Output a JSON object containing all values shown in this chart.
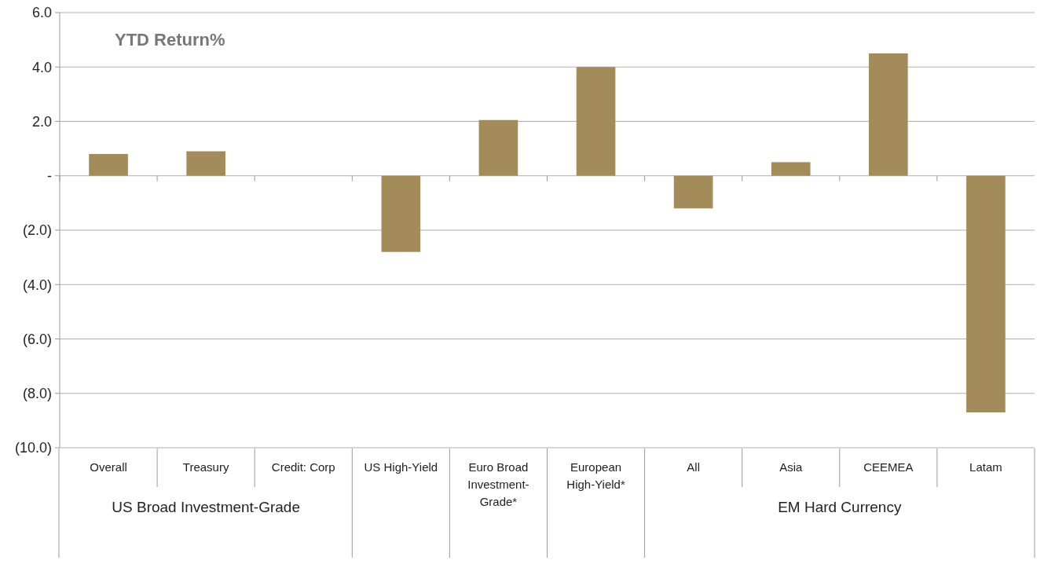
{
  "chart_data": {
    "type": "bar",
    "title": "YTD Return%",
    "categories": [
      "Overall",
      "Treasury",
      "Credit: Corp",
      "US High-Yield",
      "Euro Broad Investment-Grade*",
      "European High-Yield*",
      "All",
      "Asia",
      "CEEMEA",
      "Latam"
    ],
    "values": [
      0.8,
      0.9,
      0,
      -2.8,
      2.05,
      4.0,
      -1.2,
      0.5,
      4.5,
      -8.7
    ],
    "color": "#a38c5a",
    "ylim": [
      -10,
      6
    ],
    "yticks": [
      {
        "value": 6,
        "label": "6.0"
      },
      {
        "value": 4,
        "label": "4.0"
      },
      {
        "value": 2,
        "label": "2.0"
      },
      {
        "value": 0,
        "label": "-"
      },
      {
        "value": -2,
        "label": "(2.0)"
      },
      {
        "value": -4,
        "label": "(4.0)"
      },
      {
        "value": -6,
        "label": "(6.0)"
      },
      {
        "value": -8,
        "label": "(8.0)"
      },
      {
        "value": -10,
        "label": "(10.0)"
      }
    ],
    "grid": "y",
    "annotations": [
      "US Broad Investment-Grade",
      "EM Hard Currency"
    ]
  }
}
